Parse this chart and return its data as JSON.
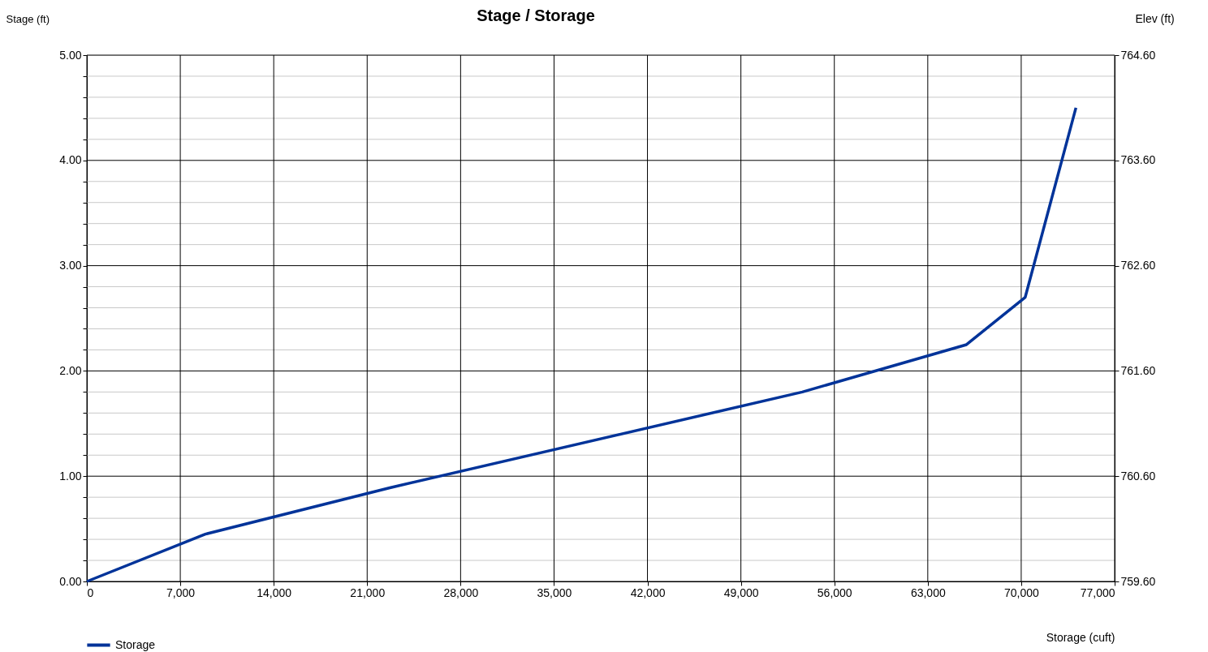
{
  "chart_data": {
    "type": "line",
    "title": "Stage / Storage",
    "xlabel": "Storage (cuft)",
    "ylabel": "Stage (ft)",
    "y2label": "Elev (ft)",
    "x": [
      0,
      8880,
      22700,
      53600,
      65900,
      70300,
      74100
    ],
    "series": [
      {
        "name": "Storage",
        "color": "#003399",
        "values": [
          0,
          0.45,
          0.89,
          1.8,
          2.25,
          2.7,
          4.5
        ]
      }
    ],
    "xlim": [
      0,
      77000
    ],
    "xticks": [
      0,
      {
        "value": 7000,
        "label": "7,000"
      },
      {
        "value": 14000,
        "label": "14,000"
      },
      {
        "value": 21000,
        "label": "21,000"
      },
      {
        "value": 28000,
        "label": "28,000"
      },
      {
        "value": 35000,
        "label": "35,000"
      },
      {
        "value": 42000,
        "label": "42,000"
      },
      {
        "value": 49000,
        "label": "49,000"
      },
      {
        "value": 56000,
        "label": "56,000"
      },
      {
        "value": 63000,
        "label": "63,000"
      },
      {
        "value": 70000,
        "label": "70,000"
      },
      {
        "value": 77000,
        "label": "77,000"
      }
    ],
    "ylim": [
      0,
      5
    ],
    "yticks": [
      {
        "value": 0,
        "label": "0.00"
      },
      {
        "value": 0.2,
        "label": null
      },
      {
        "value": 0.4,
        "label": null
      },
      {
        "value": 0.6,
        "label": null
      },
      {
        "value": 0.8,
        "label": null
      },
      {
        "value": 1,
        "label": "1.00"
      },
      {
        "value": 1.2,
        "label": null
      },
      {
        "value": 1.4,
        "label": null
      },
      {
        "value": 1.6,
        "label": null
      },
      {
        "value": 1.8,
        "label": null
      },
      {
        "value": 2,
        "label": "2.00"
      },
      {
        "value": 2.2,
        "label": null
      },
      {
        "value": 2.4,
        "label": null
      },
      {
        "value": 2.6,
        "label": null
      },
      {
        "value": 2.8,
        "label": null
      },
      {
        "value": 3,
        "label": "3.00"
      },
      {
        "value": 3.2,
        "label": null
      },
      {
        "value": 3.4,
        "label": null
      },
      {
        "value": 3.6,
        "label": null
      },
      {
        "value": 3.8,
        "label": null
      },
      {
        "value": 4,
        "label": "4.00"
      },
      {
        "value": 4.2,
        "label": null
      },
      {
        "value": 4.4,
        "label": null
      },
      {
        "value": 4.6,
        "label": null
      },
      {
        "value": 4.8,
        "label": null
      },
      {
        "value": 5,
        "label": "5.00"
      }
    ],
    "y2lim": [
      759.6,
      764.6
    ],
    "y2ticks": [
      {
        "value": 759.6,
        "label": "759.60"
      },
      {
        "value": 760.6,
        "label": "760.60"
      },
      {
        "value": 761.6,
        "label": "761.60"
      },
      {
        "value": 762.6,
        "label": "762.60"
      },
      {
        "value": 763.6,
        "label": "763.60"
      },
      {
        "value": 764.6,
        "label": "764.60"
      }
    ],
    "grid": true,
    "legend": "bottom left",
    "marker": "none",
    "line_style": "solid"
  }
}
